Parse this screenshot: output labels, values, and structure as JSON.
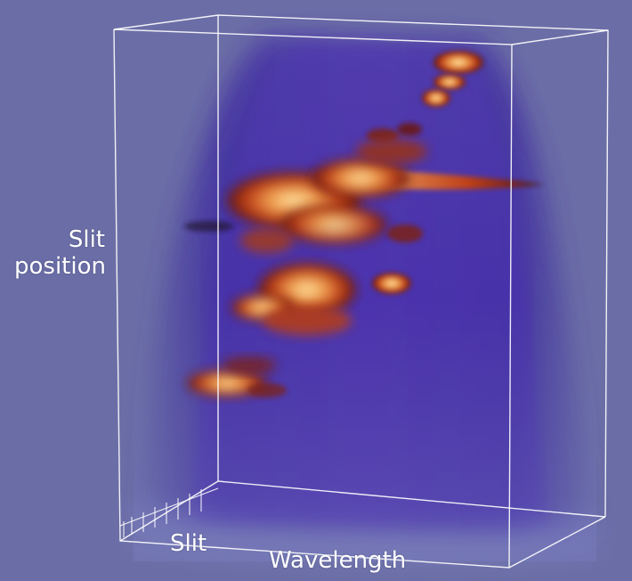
{
  "labels": {
    "slit_position_line1": "Slit",
    "slit_position_line2": "position",
    "slit": "Slit",
    "wavelength": "Wavelength"
  },
  "colors": {
    "background": "#6b6ea6",
    "volume": "#4a34a6",
    "box_lines": "#ffffff",
    "blob_dark": "#5a1410",
    "blob_mid": "#c0401a",
    "blob_hot": "#ffd890"
  }
}
